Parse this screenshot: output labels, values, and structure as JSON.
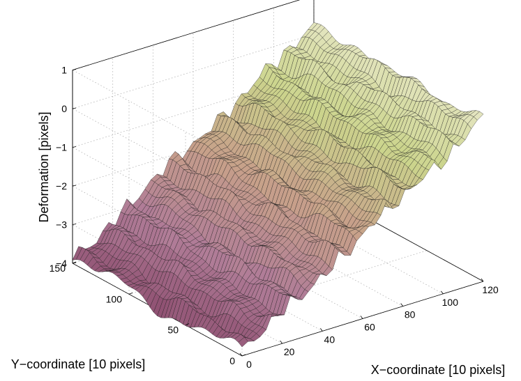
{
  "chart_data": {
    "type": "surface",
    "title": "",
    "xlabel": "X−coordinate [10 pixels]",
    "ylabel": "Y−coordinate [10 pixels]",
    "zlabel": "Deformation [pixels]",
    "xlim": [
      0,
      120
    ],
    "ylim": [
      0,
      150
    ],
    "zlim": [
      -4,
      1
    ],
    "x_ticks": [
      "0",
      "20",
      "40",
      "60",
      "80",
      "100",
      "120"
    ],
    "y_ticks": [
      "0",
      "50",
      "100",
      "150"
    ],
    "z_ticks": [
      "−4",
      "−3",
      "−2",
      "−1",
      "0",
      "1"
    ],
    "grid": true,
    "surface": {
      "x_range": [
        0,
        120
      ],
      "y_range": [
        0,
        150
      ],
      "z_at_x0": -3.9,
      "z_at_x120": 0.2,
      "ripple_amplitude": 0.25,
      "ripple_orientation": "parallel to Y axis",
      "colormap": [
        "#8a4a6c",
        "#b07c97",
        "#c7a08a",
        "#cbd48c",
        "#e7e7c6"
      ]
    }
  }
}
